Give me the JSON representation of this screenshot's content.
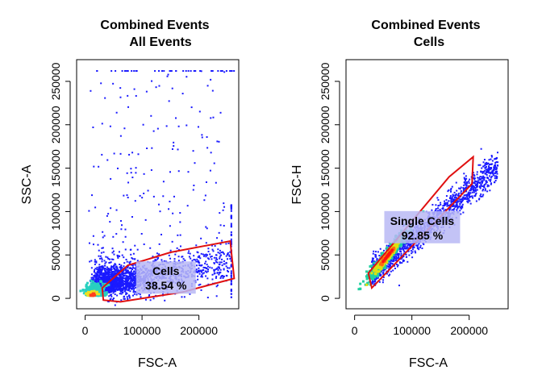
{
  "chart_data": [
    {
      "type": "scatter",
      "title": "Combined Events",
      "subtitle": "All Events",
      "xlabel": "FSC-A",
      "ylabel": "SSC-A",
      "xlim": [
        -15000,
        270000
      ],
      "ylim": [
        -12000,
        275000
      ],
      "xticks": [
        0,
        100000,
        200000
      ],
      "yticks": [
        0,
        50000,
        100000,
        150000,
        200000,
        250000
      ],
      "xtick_labels": [
        "0",
        "100000",
        "200000"
      ],
      "ytick_labels": [
        "0",
        "50000",
        "100000",
        "150000",
        "200000",
        "250000"
      ],
      "point_color": "#1a1aff",
      "density_core": {
        "x": 12000,
        "y": 3000
      },
      "gate": {
        "name": "Cells",
        "percent_label": "38.54 %",
        "color": "#e01010",
        "polygon": [
          [
            32000,
            -2000
          ],
          [
            30000,
            12000
          ],
          [
            75000,
            38000
          ],
          [
            150000,
            53000
          ],
          [
            255000,
            66000
          ],
          [
            262000,
            23000
          ],
          [
            170000,
            7000
          ],
          [
            62000,
            -4000
          ]
        ],
        "label_pos": [
          142000,
          24000
        ]
      }
    },
    {
      "type": "scatter",
      "title": "Combined Events",
      "subtitle": "Cells",
      "xlabel": "FSC-A",
      "ylabel": "FSC-H",
      "xlim": [
        -15000,
        268000
      ],
      "ylim": [
        -12000,
        275000
      ],
      "xticks": [
        0,
        100000,
        200000
      ],
      "yticks": [
        0,
        50000,
        100000,
        150000,
        200000,
        250000
      ],
      "xtick_labels": [
        "0",
        "100000",
        "200000"
      ],
      "ytick_labels": [
        "0",
        "50000",
        "100000",
        "150000",
        "200000",
        "250000"
      ],
      "point_color": "#1a1aff",
      "density_core": {
        "x": 55000,
        "y": 47000
      },
      "gate": {
        "name": "Single Cells",
        "percent_label": "92.85 %",
        "color": "#e01010",
        "polygon": [
          [
            24000,
            29000
          ],
          [
            30000,
            12000
          ],
          [
            205000,
            132000
          ],
          [
            207000,
            163000
          ],
          [
            165000,
            140000
          ]
        ],
        "label_pos": [
          118000,
          82000
        ]
      }
    }
  ]
}
